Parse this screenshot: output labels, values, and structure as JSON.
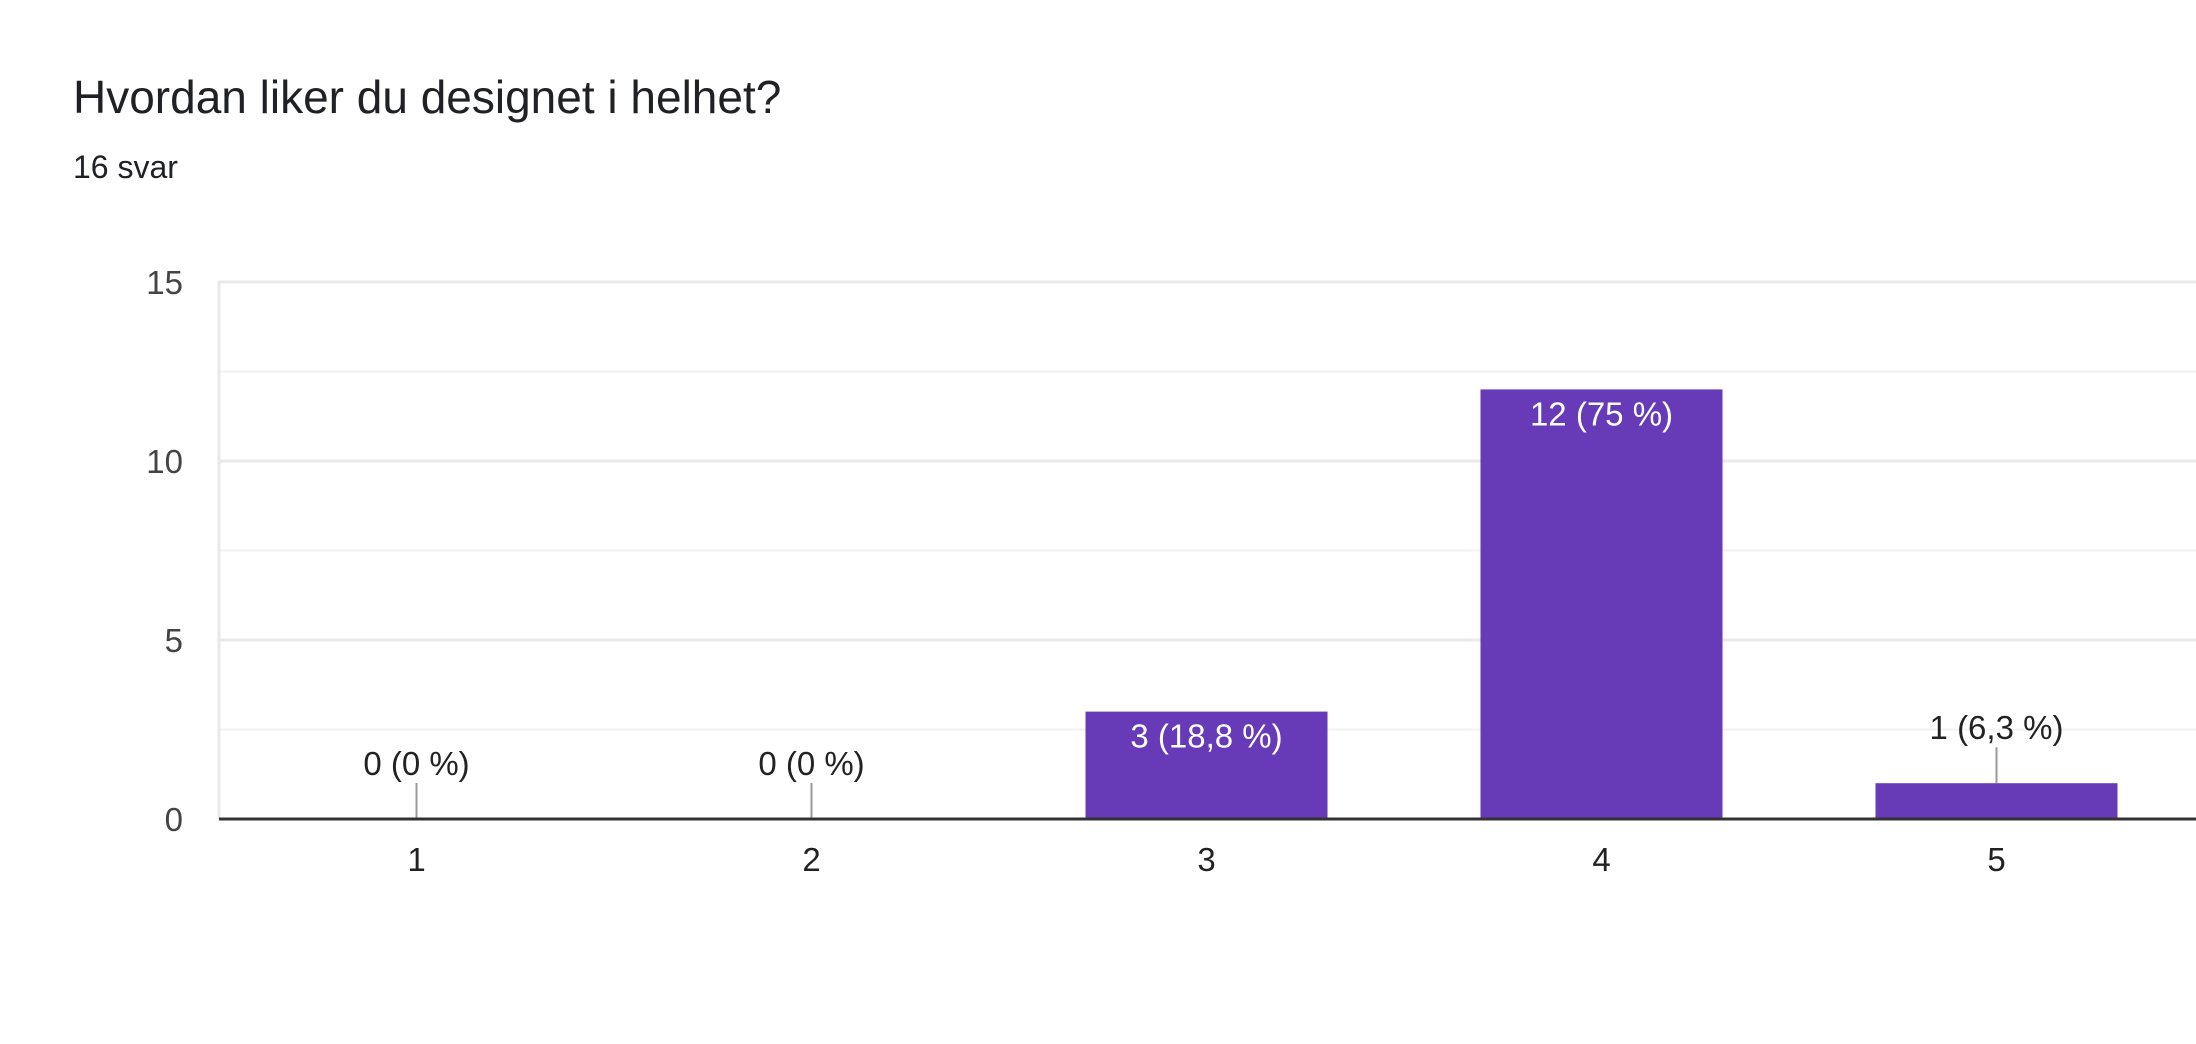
{
  "chart_data": {
    "type": "bar",
    "title": "Hvordan liker du designet i helhet?",
    "subtitle": "16 svar",
    "categories": [
      "1",
      "2",
      "3",
      "4",
      "5"
    ],
    "values": [
      0,
      0,
      3,
      12,
      1
    ],
    "data_labels": [
      "0 (0 %)",
      "0 (0 %)",
      "3 (18,8 %)",
      "12 (75 %)",
      "1 (6,3 %)"
    ],
    "y_ticks": [
      "0",
      "5",
      "10",
      "15"
    ],
    "ylim": [
      0,
      15
    ],
    "xlabel": "",
    "ylabel": "",
    "grid": true,
    "bar_color": "#673ab7"
  }
}
